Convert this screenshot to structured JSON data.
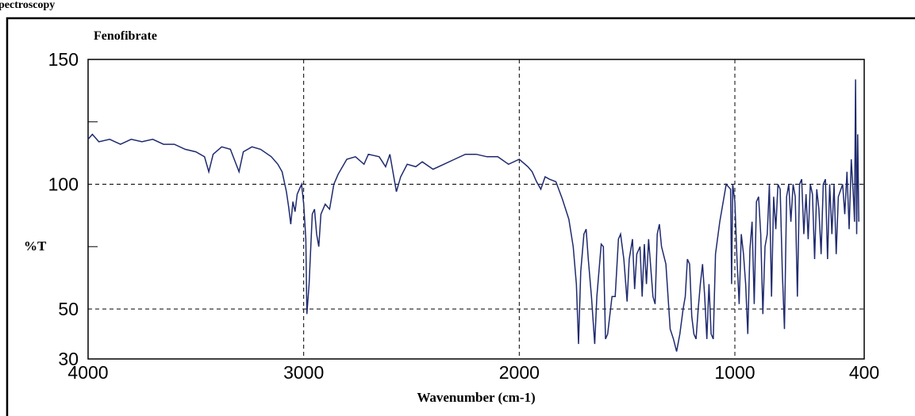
{
  "header": "pectroscopy",
  "chart_data": {
    "type": "line",
    "title": "Fenofibrate",
    "x_label": "Wavenumber (cm-1)",
    "y_label": "%T",
    "xlim": [
      4000,
      400
    ],
    "ylim": [
      30,
      150
    ],
    "xticks": [
      4000,
      3000,
      2000,
      1000,
      400
    ],
    "yticks": [
      30,
      50,
      100,
      150
    ],
    "yminor": [
      75,
      125
    ],
    "grid": true,
    "series": [
      {
        "color": "#1f2a6e",
        "x": [
          4000,
          3980,
          3950,
          3900,
          3850,
          3800,
          3750,
          3700,
          3650,
          3600,
          3550,
          3500,
          3460,
          3440,
          3420,
          3380,
          3340,
          3300,
          3280,
          3240,
          3200,
          3150,
          3120,
          3100,
          3080,
          3070,
          3060,
          3050,
          3040,
          3030,
          3020,
          3010,
          3000,
          2990,
          2985,
          2975,
          2960,
          2950,
          2940,
          2930,
          2920,
          2900,
          2880,
          2860,
          2840,
          2800,
          2760,
          2720,
          2700,
          2650,
          2620,
          2600,
          2570,
          2550,
          2520,
          2480,
          2450,
          2400,
          2350,
          2300,
          2250,
          2200,
          2150,
          2100,
          2050,
          2000,
          1960,
          1940,
          1920,
          1900,
          1880,
          1860,
          1830,
          1800,
          1770,
          1750,
          1735,
          1725,
          1715,
          1700,
          1690,
          1680,
          1665,
          1650,
          1640,
          1620,
          1610,
          1600,
          1590,
          1570,
          1555,
          1540,
          1530,
          1515,
          1500,
          1490,
          1475,
          1465,
          1455,
          1440,
          1430,
          1420,
          1410,
          1400,
          1380,
          1370,
          1360,
          1350,
          1340,
          1320,
          1300,
          1285,
          1270,
          1255,
          1240,
          1230,
          1220,
          1210,
          1200,
          1190,
          1180,
          1170,
          1160,
          1150,
          1140,
          1130,
          1120,
          1110,
          1100,
          1090,
          1070,
          1050,
          1040,
          1020,
          1015,
          1010,
          1000,
          990,
          980,
          970,
          960,
          950,
          940,
          930,
          920,
          910,
          900,
          890,
          880,
          870,
          860,
          850,
          840,
          830,
          820,
          810,
          800,
          790,
          780,
          770,
          760,
          750,
          740,
          730,
          720,
          710,
          700,
          690,
          680,
          670,
          660,
          650,
          640,
          630,
          620,
          610,
          600,
          590,
          580,
          570,
          560,
          550,
          540,
          530,
          520,
          500,
          490,
          480,
          470,
          460,
          450,
          445,
          440,
          435,
          430,
          425
        ],
        "values": [
          118,
          120,
          117,
          118,
          116,
          118,
          117,
          118,
          116,
          116,
          114,
          113,
          111,
          105,
          112,
          115,
          114,
          105,
          113,
          115,
          114,
          111,
          108,
          105,
          97,
          91,
          84,
          93,
          89,
          96,
          98,
          100,
          92,
          78,
          48,
          60,
          88,
          90,
          80,
          75,
          88,
          92,
          90,
          100,
          104,
          110,
          111,
          108,
          112,
          111,
          107,
          112,
          97,
          103,
          108,
          107,
          109,
          106,
          108,
          110,
          112,
          112,
          111,
          111,
          108,
          110,
          107,
          105,
          101,
          98,
          103,
          102,
          101,
          94,
          86,
          75,
          60,
          36,
          65,
          80,
          82,
          70,
          55,
          36,
          55,
          76,
          75,
          38,
          40,
          55,
          55,
          78,
          80,
          70,
          53,
          70,
          78,
          58,
          72,
          75,
          55,
          76,
          60,
          78,
          55,
          52,
          80,
          84,
          75,
          68,
          42,
          38,
          33,
          40,
          50,
          55,
          70,
          68,
          47,
          40,
          38,
          50,
          60,
          68,
          55,
          38,
          60,
          40,
          38,
          72,
          85,
          95,
          100,
          98,
          60,
          100,
          93,
          70,
          52,
          80,
          72,
          60,
          40,
          74,
          85,
          52,
          93,
          95,
          80,
          48,
          75,
          80,
          100,
          55,
          95,
          82,
          100,
          98,
          65,
          42,
          95,
          100,
          85,
          100,
          95,
          55,
          100,
          102,
          80,
          96,
          78,
          100,
          96,
          70,
          98,
          90,
          72,
          100,
          102,
          70,
          100,
          80,
          100,
          72,
          95,
          100,
          88,
          105,
          82,
          110,
          95,
          85,
          142,
          80,
          120,
          85
        ]
      }
    ]
  }
}
